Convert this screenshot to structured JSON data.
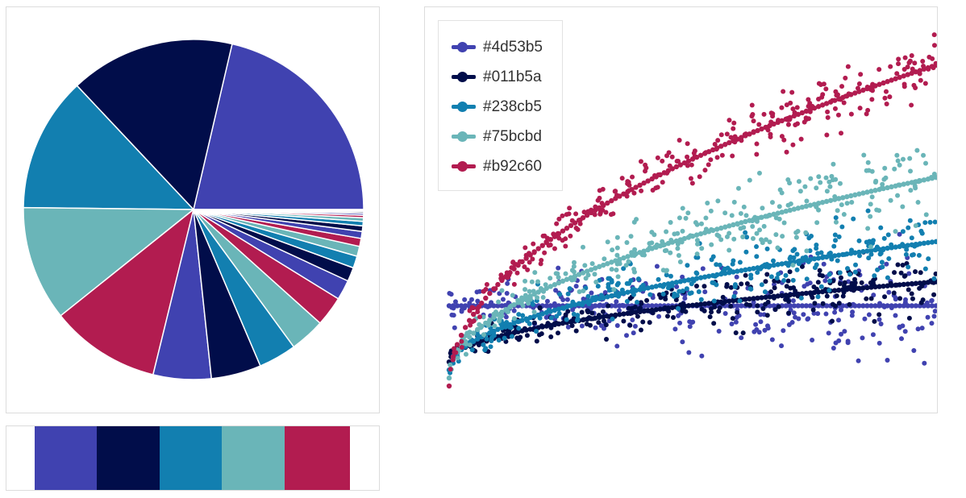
{
  "palette": [
    "#4d53b5",
    "#011b5a",
    "#238cb5",
    "#75bcbd",
    "#b92c60"
  ],
  "draw_colors": [
    "#4042b0",
    "#010d4a",
    "#127fb0",
    "#6ab5b8",
    "#b21c50"
  ],
  "chart_data": [
    {
      "type": "pie",
      "title": "",
      "values": [
        22.5,
        16.5,
        13.5,
        11.5,
        11.0,
        5.8,
        5.0,
        3.8,
        3.5,
        3.0,
        2.0,
        1.4,
        1.2,
        1.0,
        0.8,
        0.7,
        0.55,
        0.45,
        0.35,
        0.25,
        0.2,
        0.15,
        0.12,
        0.1
      ],
      "colors_cycle": [
        "#4d53b5",
        "#011b5a",
        "#238cb5",
        "#75bcbd",
        "#b92c60"
      ],
      "start_angle_deg": 0,
      "direction": "counterclockwise"
    },
    {
      "type": "scatter",
      "title": "",
      "xlabel": "",
      "ylabel": "",
      "legend_position": "top-left",
      "grid": false,
      "axes_visible": false,
      "xlim": [
        0,
        100
      ],
      "ylim": [
        -1.1,
        3.5
      ],
      "series": [
        {
          "name": "#4d53b5",
          "color": "#4d53b5",
          "trend": [
            0.0,
            0.0
          ],
          "spread": [
            0.05,
            0.32
          ],
          "points": 280
        },
        {
          "name": "#011b5a",
          "color": "#011b5a",
          "trend": [
            -0.7,
            0.3
          ],
          "spread": [
            0.05,
            0.17
          ],
          "points": 280
        },
        {
          "name": "#238cb5",
          "color": "#238cb5",
          "trend": [
            -0.8,
            0.8
          ],
          "spread": [
            0.05,
            0.22
          ],
          "points": 280
        },
        {
          "name": "#75bcbd",
          "color": "#75bcbd",
          "trend": [
            -0.9,
            1.6
          ],
          "spread": [
            0.05,
            0.28
          ],
          "points": 280
        },
        {
          "name": "#b92c60",
          "color": "#b92c60",
          "trend": [
            -1.0,
            3.0
          ],
          "spread": [
            0.05,
            0.18
          ],
          "points": 280
        }
      ]
    }
  ]
}
